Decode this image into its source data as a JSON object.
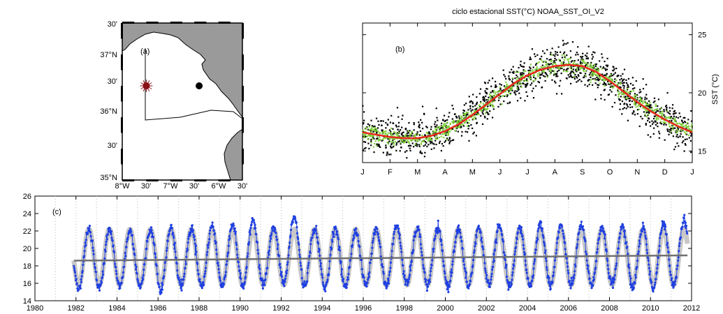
{
  "colors": {
    "land": "#9a9a9a",
    "sea": "#ffffff",
    "marker_red": "#8b0f16",
    "marker_black": "#000000",
    "scatter_black": "#000000",
    "scatter_green": "#7fd13b",
    "fit_red": "#e8261d",
    "series_blue": "#2040e0",
    "cycle_gray": "#c8c8c8",
    "trend_gray": "#707070"
  },
  "panel_a": {
    "label": "(a)",
    "lat_labels": [
      "30'",
      "37°N",
      "30'",
      "36°N",
      "30'",
      "35°N"
    ],
    "lon_labels": [
      "8°W",
      "30'",
      "7°W",
      "30'",
      "6°W",
      "30'"
    ],
    "lon_range": [
      -8,
      -5.5
    ],
    "lat_range": [
      35,
      37.5
    ],
    "markers": [
      {
        "name": "red-star-station",
        "lon": -7.5,
        "lat": 36.5,
        "color_key": "marker_red"
      },
      {
        "name": "black-dot-station",
        "lon": -6.4,
        "lat": 36.5,
        "color_key": "marker_black"
      }
    ]
  },
  "chart_data": [
    {
      "panel": "(b)",
      "type": "scatter",
      "title": "ciclo estacional SST(°C) NOAA_SST_OI_V2",
      "xlabel": "",
      "ylabel": "SST (°C)",
      "categories": [
        "J",
        "F",
        "M",
        "A",
        "M",
        "J",
        "J",
        "A",
        "S",
        "O",
        "N",
        "D",
        "J"
      ],
      "xlim": [
        0,
        12
      ],
      "ylim": [
        14,
        26
      ],
      "yticks": [
        15,
        20,
        25
      ],
      "label": "(b)",
      "series": [
        {
          "kind": "daily-points",
          "color_key": "scatter_black",
          "spread_degC": 1.2
        },
        {
          "kind": "band-points",
          "color_key": "scatter_green",
          "spread_degC": 0.55
        },
        {
          "kind": "fitted-cycle",
          "color_key": "fit_red",
          "x": [
            0,
            0.5,
            1,
            1.5,
            2,
            2.5,
            3,
            3.5,
            4,
            4.5,
            5,
            5.5,
            6,
            6.5,
            7,
            7.5,
            8,
            8.5,
            9,
            9.5,
            10,
            10.5,
            11,
            11.5,
            12
          ],
          "y": [
            16.6,
            16.4,
            16.2,
            16.1,
            16.1,
            16.3,
            16.7,
            17.3,
            18.1,
            19.0,
            19.9,
            20.8,
            21.5,
            22.0,
            22.3,
            22.4,
            22.3,
            21.8,
            21.0,
            20.1,
            19.2,
            18.4,
            17.7,
            17.1,
            16.6
          ]
        }
      ]
    },
    {
      "panel": "(c)",
      "type": "line",
      "label": "(c)",
      "xlabel": "",
      "ylabel": "",
      "xlim": [
        1980,
        2012
      ],
      "ylim": [
        14,
        26
      ],
      "xticks": [
        1980,
        1982,
        1984,
        1986,
        1988,
        1990,
        1992,
        1994,
        1996,
        1998,
        2000,
        2002,
        2004,
        2006,
        2008,
        2010,
        2012
      ],
      "yticks": [
        14,
        16,
        18,
        20,
        22,
        24,
        26
      ],
      "series": [
        {
          "kind": "observed",
          "color_key": "series_blue",
          "x_start": 1981.9,
          "x_end": 2011.8,
          "annual_max": [
            22.2,
            22.3,
            22.0,
            22.2,
            22.4,
            22.3,
            22.6,
            22.8,
            23.3,
            22.4,
            23.6,
            22.3,
            22.3,
            22.0,
            22.2,
            22.6,
            22.3,
            22.3,
            22.2,
            22.3,
            22.5,
            22.4,
            22.8,
            22.6,
            22.7,
            22.5,
            22.5,
            22.4,
            22.8,
            23.3
          ],
          "annual_min": [
            15.4,
            15.4,
            15.6,
            15.6,
            15.3,
            15.7,
            15.6,
            15.6,
            15.6,
            15.9,
            16.0,
            15.7,
            15.4,
            15.6,
            15.8,
            15.7,
            15.9,
            15.7,
            15.6,
            15.7,
            15.9,
            15.6,
            15.7,
            15.8,
            15.7,
            15.6,
            15.9,
            15.5,
            15.4,
            15.9
          ]
        },
        {
          "kind": "seasonal-cycle",
          "color_key": "cycle_gray",
          "mean": 19.0,
          "amplitude": 3.2
        },
        {
          "kind": "linear-trend",
          "color_key": "trend_gray",
          "x": [
            1981.9,
            2011.8
          ],
          "y": [
            18.6,
            19.2
          ]
        }
      ]
    }
  ]
}
